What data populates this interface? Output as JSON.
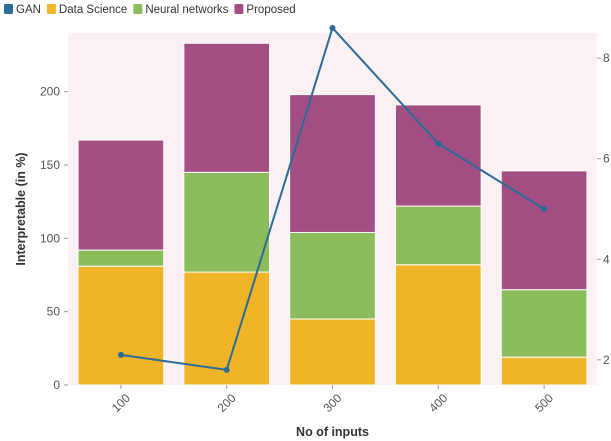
{
  "chart_data": {
    "type": "bar",
    "stacked": true,
    "categories": [
      "100",
      "200",
      "300",
      "400",
      "500"
    ],
    "series": [
      {
        "name": "Data Science",
        "color": "#f0b429",
        "values": [
          81,
          77,
          45,
          82,
          19
        ]
      },
      {
        "name": "Neural networks",
        "color": "#8cbd5c",
        "values": [
          11,
          68,
          59,
          40,
          46
        ]
      },
      {
        "name": "Proposed",
        "color": "#a44f84",
        "values": [
          75,
          88,
          94,
          69,
          81
        ]
      }
    ],
    "line_series": [
      {
        "name": "GAN",
        "color": "#2a6b97",
        "values": [
          2.1,
          1.8,
          8.6,
          6.3,
          5.0
        ],
        "axis": "right"
      }
    ],
    "legend_order": [
      "GAN",
      "Data Science",
      "Neural networks",
      "Proposed"
    ],
    "xlabel": "No of inputs",
    "ylabel": "Interpretable (in %)",
    "ylim": [
      0,
      240
    ],
    "y_ticks": [
      0,
      50,
      100,
      150,
      200
    ],
    "y2lim": [
      1.5,
      8.5
    ],
    "y2_ticks": [
      2,
      4,
      6,
      8
    ],
    "legend_position": "top-left",
    "plot_background": "#fbf0f2",
    "grid": false
  }
}
